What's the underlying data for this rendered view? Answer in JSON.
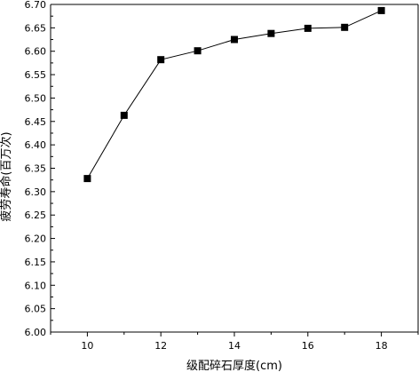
{
  "chart_data": {
    "type": "line",
    "title": "",
    "xlabel": "级配碎石厚度(cm)",
    "ylabel": "疲劳寿命(百万次)",
    "xlim": [
      9,
      19
    ],
    "ylim": [
      6.0,
      6.7
    ],
    "x_ticks": [
      10,
      12,
      14,
      16,
      18
    ],
    "y_ticks": [
      6.0,
      6.05,
      6.1,
      6.15,
      6.2,
      6.25,
      6.3,
      6.35,
      6.4,
      6.45,
      6.5,
      6.55,
      6.6,
      6.65,
      6.7
    ],
    "grid": false,
    "series": [
      {
        "x": [
          10,
          11,
          12,
          13,
          14,
          15,
          16,
          17,
          18
        ],
        "y": [
          6.328,
          6.463,
          6.582,
          6.601,
          6.625,
          6.638,
          6.649,
          6.651,
          6.687
        ],
        "marker": "square",
        "color": "#000000"
      }
    ]
  }
}
